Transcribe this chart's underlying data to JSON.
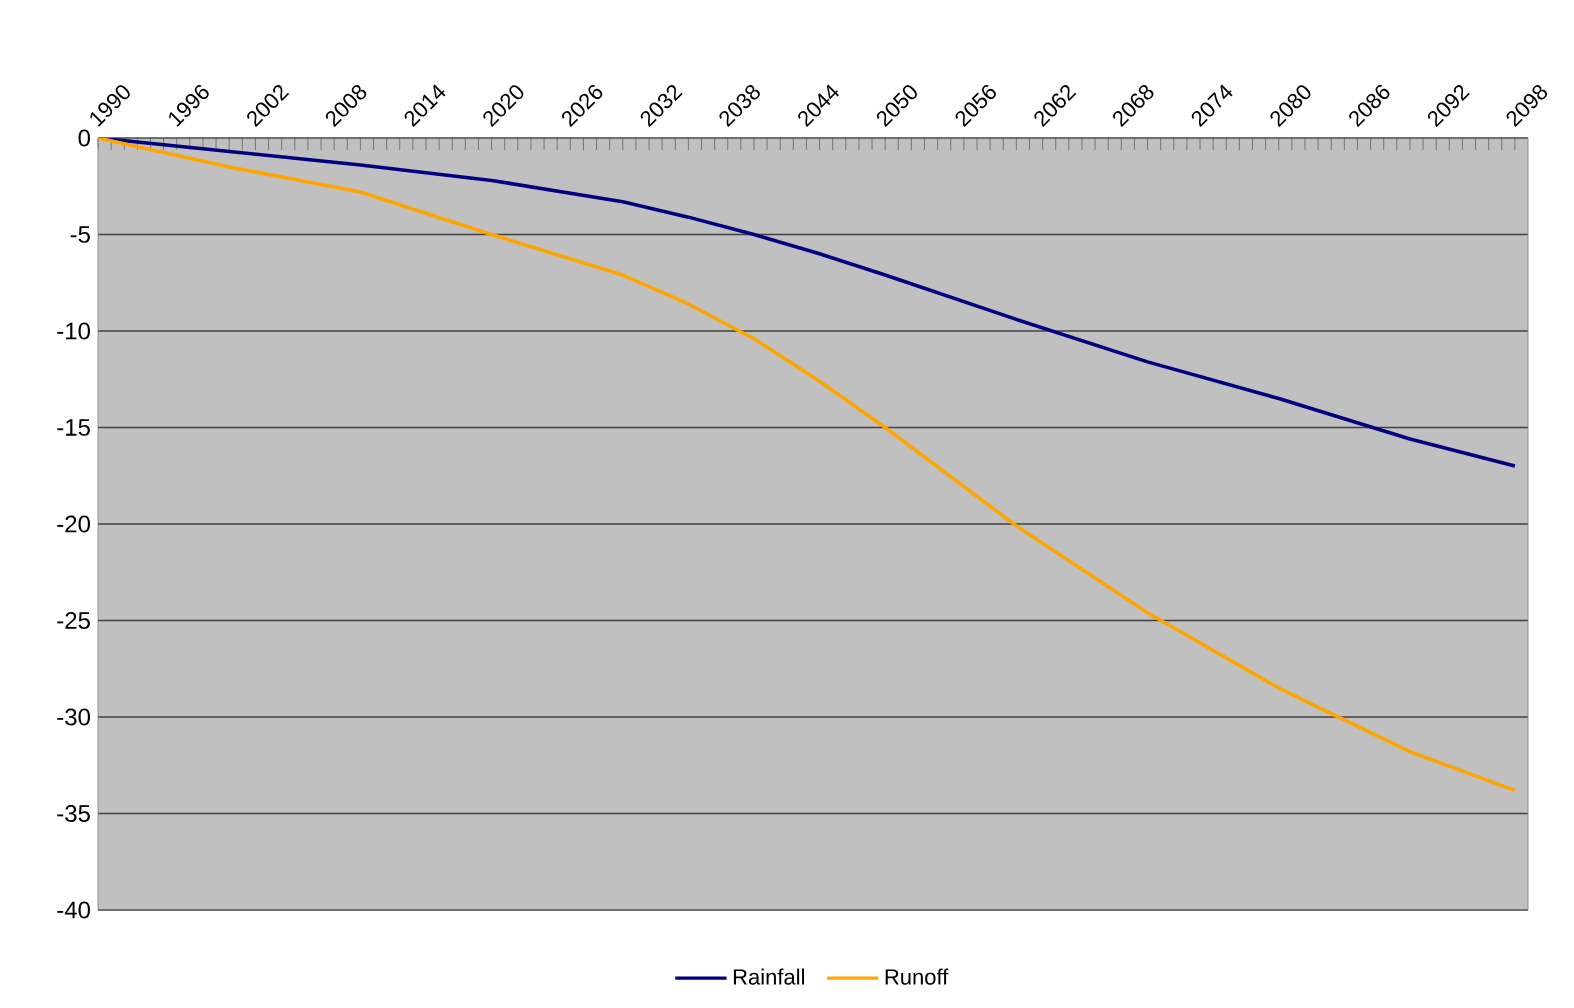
{
  "chart_data": {
    "type": "line",
    "x": [
      1990,
      2000,
      2010,
      2020,
      2030,
      2035,
      2040,
      2045,
      2050,
      2060,
      2070,
      2080,
      2090,
      2098
    ],
    "series": [
      {
        "name": "Rainfall",
        "color": "#000080",
        "values": [
          0,
          -0.7,
          -1.4,
          -2.2,
          -3.3,
          -4.1,
          -5.0,
          -6.0,
          -7.1,
          -9.4,
          -11.6,
          -13.5,
          -15.6,
          -17.0
        ]
      },
      {
        "name": "Runoff",
        "color": "#ffa500",
        "values": [
          0,
          -1.5,
          -2.8,
          -5.0,
          -7.1,
          -8.6,
          -10.4,
          -12.6,
          -15.0,
          -20.1,
          -24.6,
          -28.5,
          -31.8,
          -33.8
        ]
      }
    ],
    "xlim": [
      1990,
      2099
    ],
    "xticks": [
      1990,
      1996,
      2002,
      2008,
      2014,
      2020,
      2026,
      2032,
      2038,
      2044,
      2050,
      2056,
      2062,
      2068,
      2074,
      2080,
      2086,
      2092,
      2098
    ],
    "ylim": [
      -40,
      0
    ],
    "yticks": [
      -40,
      -35,
      -30,
      -25,
      -20,
      -15,
      -10,
      -5,
      0
    ],
    "grid": "y",
    "legend": "bottom"
  }
}
